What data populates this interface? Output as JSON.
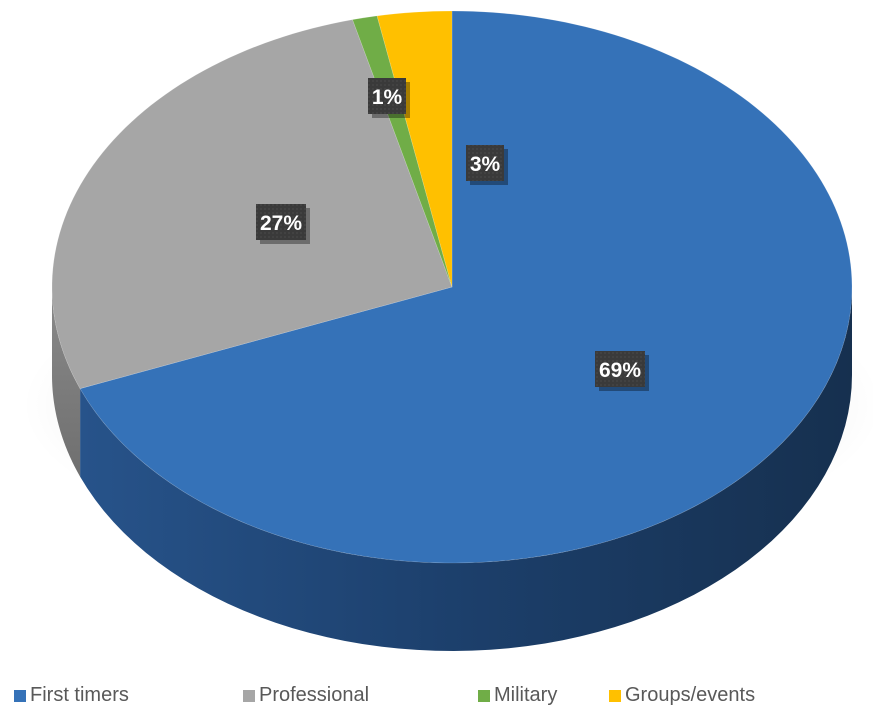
{
  "chart_data": {
    "type": "pie",
    "title": "",
    "categories": [
      "First timers",
      "Professional",
      "Military",
      "Groups/events"
    ],
    "values": [
      69,
      27,
      1,
      3
    ],
    "data_labels": [
      "69%",
      "27%",
      "1%",
      "3%"
    ],
    "colors": [
      "#3572B8",
      "#A6A6A6",
      "#70AD47",
      "#FFC000"
    ],
    "legend_position": "bottom",
    "style": "3d-pie"
  }
}
